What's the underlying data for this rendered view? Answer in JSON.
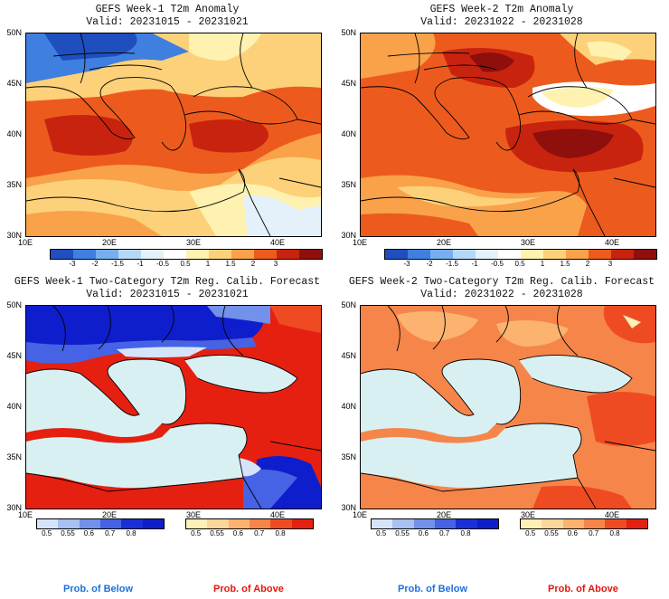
{
  "panels": {
    "tl": {
      "title": "GEFS Week-1 T2m Anomaly",
      "valid": "Valid: 20231015 - 20231021"
    },
    "tr": {
      "title": "GEFS Week-2 T2m Anomaly",
      "valid": "Valid: 20231022 - 20231028"
    },
    "bl": {
      "title": "GEFS Week-1 Two-Category T2m Reg. Calib. Forecast",
      "valid": "Valid: 20231015 - 20231021"
    },
    "br": {
      "title": "GEFS Week-2 Two-Category T2m Reg. Calib. Forecast",
      "valid": "Valid: 20231022 - 20231028"
    }
  },
  "axes": {
    "lat_labels": [
      "50N",
      "45N",
      "40N",
      "35N",
      "30N"
    ],
    "lon_labels": [
      "10E",
      "20E",
      "30E",
      "40E"
    ]
  },
  "anomaly_colorbar": {
    "labels": [
      "-3",
      "-2",
      "-1.5",
      "-1",
      "-0.5",
      "0.5",
      "1",
      "1.5",
      "2",
      "3"
    ],
    "colors": [
      "#1f4fbf",
      "#3f7fe0",
      "#77aef0",
      "#b6d8f7",
      "#e4f1fb",
      "#ffffff",
      "#fff2b0",
      "#fdd179",
      "#f9a24a",
      "#ec5b1d",
      "#c8230f",
      "#8e0f0c"
    ]
  },
  "prob_colorbar": {
    "below_labels": [
      "0.5",
      "0.55",
      "0.6",
      "0.7",
      "0.8"
    ],
    "below_colors": [
      "#d6e4fa",
      "#a8c0f2",
      "#7191ea",
      "#4563e4",
      "#1a2fd8",
      "#0f1ecc"
    ],
    "above_labels": [
      "0.5",
      "0.55",
      "0.6",
      "0.7",
      "0.8"
    ],
    "above_colors": [
      "#fff1b5",
      "#fdd79a",
      "#fbb36f",
      "#f6854a",
      "#ef4b23",
      "#e52011"
    ],
    "below_title": "Prob. of Below",
    "above_title": "Prob. of Above",
    "below_title_color": "#1e6fd9",
    "above_title_color": "#e0170c"
  }
}
